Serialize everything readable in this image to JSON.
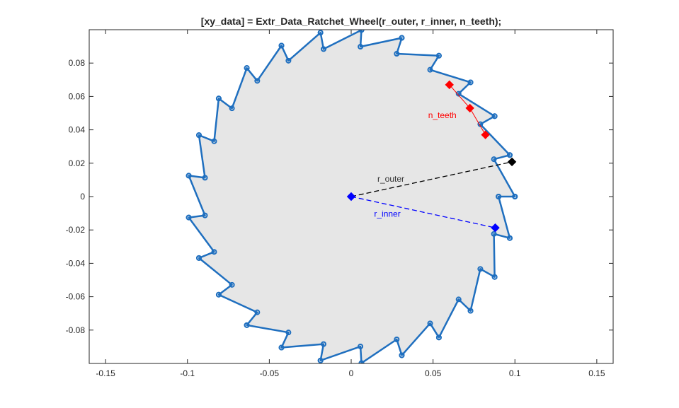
{
  "chart_data": {
    "type": "line",
    "title": "[xy_data] = Extr_Data_Ratchet_Wheel(r_outer, r_inner, n_teeth);",
    "xlim": [
      -0.16,
      0.16
    ],
    "ylim": [
      -0.1,
      0.1
    ],
    "x_ticks": [
      -0.15,
      -0.1,
      -0.05,
      0,
      0.05,
      0.1,
      0.15
    ],
    "x_tick_labels": [
      "-0.15",
      "-0.1",
      "-0.05",
      "0",
      "0.05",
      "0.1",
      "0.15"
    ],
    "y_ticks": [
      -0.08,
      -0.06,
      -0.04,
      -0.02,
      0,
      0.02,
      0.04,
      0.06,
      0.08
    ],
    "y_tick_labels": [
      "-0.08",
      "-0.06",
      "-0.04",
      "-0.02",
      "0",
      "0.02",
      "0.04",
      "0.06",
      "0.08"
    ],
    "grid": false,
    "r_outer": 0.1,
    "r_inner": 0.09,
    "n_teeth": 25,
    "colors": {
      "profile": "#1f6fbf",
      "fill": "#e6e6e6",
      "outer": "#000000",
      "inner": "#0000ff",
      "teeth": "#ff0000",
      "axes": "#262626"
    },
    "annotations": {
      "outer_label": "r_outer",
      "inner_label": "r_inner",
      "teeth_label": "n_teeth",
      "outer_line": {
        "from": [
          0,
          0
        ],
        "to": [
          0.0982,
          0.0208
        ]
      },
      "inner_line": {
        "from": [
          0,
          0
        ],
        "to": [
          0.088,
          -0.0187
        ]
      },
      "teeth_markers": [
        [
          0.06,
          0.067
        ],
        [
          0.0725,
          0.053
        ],
        [
          0.082,
          0.037
        ]
      ]
    }
  }
}
